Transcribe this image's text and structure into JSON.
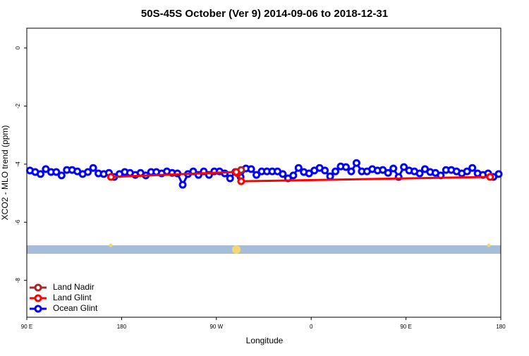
{
  "chart_data": {
    "type": "line",
    "title": "50S-45S October (Ver 9)   2014-09-06 to 2018-12-31",
    "x_label": "Longitude",
    "y_label": "XCO2 - MLO trend (ppm)",
    "xlim": [
      90,
      540
    ],
    "ylim": [
      -9.27,
      0.68
    ],
    "xticks": [
      {
        "value": 90,
        "label": "90 E"
      },
      {
        "value": 180,
        "label": "180"
      },
      {
        "value": 270,
        "label": "90 W"
      },
      {
        "value": 360,
        "label": "0"
      },
      {
        "value": 450,
        "label": "90 E"
      },
      {
        "value": 540,
        "label": "180"
      }
    ],
    "yticks": [
      0,
      -2,
      -4,
      -6,
      -8
    ],
    "legend": "bottom-left",
    "series": [
      {
        "name": "Land Nadir",
        "color": "#a52a2a",
        "x": [
          290.2,
          293.5
        ],
        "values": [
          -4.32,
          -4.2
        ]
      },
      {
        "name": "Land Glint",
        "color": "#ff0000",
        "x": [
          169.9,
          288.8,
          293.5,
          529.9
        ],
        "values": [
          -4.44,
          -4.27,
          -4.59,
          -4.44
        ]
      },
      {
        "name": "Ocean Glint",
        "color": "#0000ff",
        "x": [
          93,
          98,
          103,
          108,
          113,
          118,
          123,
          128,
          133,
          138,
          143,
          148,
          153,
          158,
          163,
          168,
          173,
          178,
          183,
          188,
          193,
          198,
          203,
          208,
          213,
          218,
          223,
          228,
          233,
          238,
          243,
          248,
          253,
          258,
          263,
          268,
          273,
          278,
          283,
          288,
          293,
          298,
          303,
          308,
          313,
          318,
          323,
          328,
          333,
          338,
          343,
          348,
          353,
          358,
          363,
          368,
          373,
          378,
          383,
          388,
          393,
          398,
          403,
          408,
          413,
          418,
          423,
          428,
          433,
          438,
          443,
          448,
          453,
          458,
          463,
          468,
          473,
          478,
          483,
          488,
          493,
          498,
          503,
          508,
          513,
          518,
          523,
          528,
          533,
          538
        ],
        "values": [
          -4.22,
          -4.27,
          -4.34,
          -4.17,
          -4.27,
          -4.27,
          -4.39,
          -4.2,
          -4.2,
          -4.25,
          -4.34,
          -4.27,
          -4.13,
          -4.32,
          -4.34,
          -4.3,
          -4.44,
          -4.34,
          -4.27,
          -4.3,
          -4.37,
          -4.3,
          -4.39,
          -4.27,
          -4.27,
          -4.32,
          -4.25,
          -4.3,
          -4.32,
          -4.71,
          -4.34,
          -4.25,
          -4.37,
          -4.25,
          -4.37,
          -4.25,
          -4.25,
          -4.32,
          -4.49,
          -4.27,
          -4.44,
          -4.15,
          -4.17,
          -4.37,
          -4.25,
          -4.25,
          -4.25,
          -4.25,
          -4.34,
          -4.49,
          -4.39,
          -4.13,
          -4.27,
          -4.32,
          -4.22,
          -4.13,
          -4.22,
          -4.42,
          -4.25,
          -4.08,
          -4.1,
          -4.25,
          -3.96,
          -4.25,
          -4.25,
          -4.17,
          -4.22,
          -4.2,
          -4.3,
          -4.15,
          -4.44,
          -4.1,
          -4.22,
          -4.25,
          -4.32,
          -4.17,
          -4.27,
          -4.3,
          -4.39,
          -4.2,
          -4.2,
          -4.25,
          -4.32,
          -4.25,
          -4.13,
          -4.32,
          -4.37,
          -4.32,
          -4.44,
          -4.34
        ]
      }
    ]
  }
}
